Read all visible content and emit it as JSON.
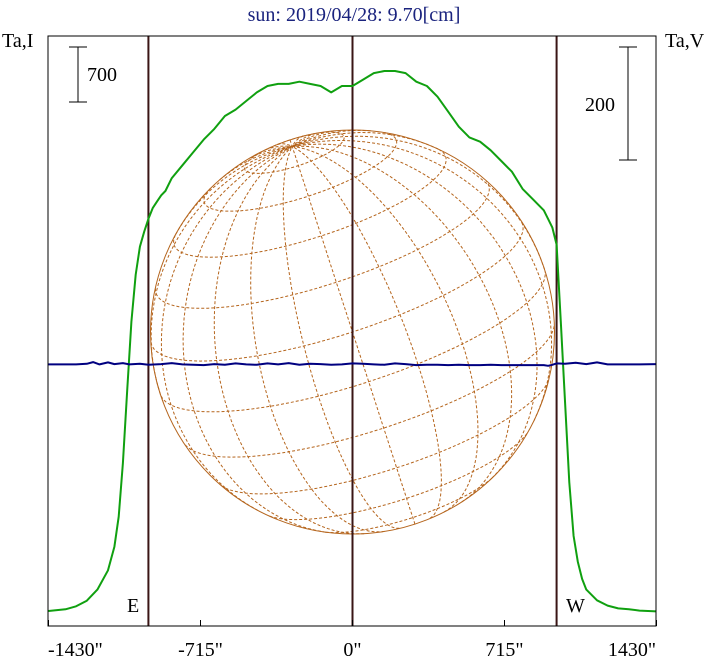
{
  "chart_data": {
    "type": "line",
    "title": "sun: 2019/04/28: 9.70[cm]",
    "left_axis_label": "Ta,I",
    "right_axis_label": "Ta,V",
    "left_scale_bar_label": "700",
    "right_scale_bar_label": "200",
    "limb_labels": {
      "east": "E",
      "west": "W"
    },
    "x_ticks": [
      -1430,
      -715,
      0,
      715,
      1430
    ],
    "x_tick_labels": [
      "-1430\"",
      "-715\"",
      "0\"",
      "715\"",
      "1430\""
    ],
    "xlim": [
      -1430,
      1430
    ],
    "vertical_markers": [
      -960,
      0,
      960
    ],
    "grid": false,
    "colors": {
      "title": "#1a237e",
      "stokes_i": "#10a010",
      "stokes_v": "#000080",
      "disk": "#b5651d",
      "markers": "#3a1515"
    },
    "series": [
      {
        "name": "Ta,I",
        "axis": "left",
        "ylim": [
          -300,
          2300
        ],
        "x": [
          -1430,
          -1350,
          -1300,
          -1250,
          -1200,
          -1150,
          -1120,
          -1100,
          -1080,
          -1060,
          -1040,
          -1020,
          -1000,
          -980,
          -960,
          -940,
          -920,
          -900,
          -880,
          -850,
          -800,
          -750,
          -700,
          -650,
          -600,
          -550,
          -500,
          -450,
          -400,
          -350,
          -300,
          -250,
          -200,
          -150,
          -100,
          -50,
          0,
          50,
          100,
          150,
          200,
          250,
          300,
          350,
          400,
          450,
          500,
          550,
          600,
          650,
          700,
          750,
          800,
          850,
          900,
          920,
          940,
          960,
          980,
          1000,
          1020,
          1040,
          1060,
          1080,
          1100,
          1150,
          1200,
          1250,
          1300,
          1350,
          1430
        ],
        "y": [
          -270,
          -262,
          -248,
          -222,
          -170,
          -80,
          30,
          170,
          420,
          760,
          1080,
          1300,
          1430,
          1500,
          1560,
          1610,
          1640,
          1670,
          1690,
          1750,
          1810,
          1870,
          1930,
          1980,
          2040,
          2070,
          2110,
          2150,
          2180,
          2190,
          2190,
          2200,
          2190,
          2180,
          2150,
          2180,
          2180,
          2210,
          2240,
          2250,
          2250,
          2240,
          2200,
          2180,
          2130,
          2060,
          1990,
          1940,
          1920,
          1880,
          1830,
          1780,
          1700,
          1650,
          1600,
          1560,
          1520,
          1440,
          1080,
          700,
          330,
          80,
          -40,
          -120,
          -170,
          -220,
          -245,
          -258,
          -262,
          -268,
          -272
        ]
      },
      {
        "name": "Ta,V",
        "axis": "right",
        "ylim": [
          -600,
          800
        ],
        "x": [
          -1430,
          -1350,
          -1300,
          -1250,
          -1220,
          -1190,
          -1150,
          -1120,
          -1080,
          -1050,
          -1000,
          -960,
          -900,
          -850,
          -800,
          -750,
          -700,
          -650,
          -600,
          -550,
          -500,
          -450,
          -400,
          -350,
          -300,
          -250,
          -200,
          -150,
          -100,
          -50,
          0,
          50,
          100,
          150,
          200,
          250,
          300,
          350,
          400,
          450,
          500,
          550,
          600,
          650,
          700,
          750,
          800,
          850,
          900,
          920,
          940,
          960,
          1000,
          1050,
          1100,
          1150,
          1200,
          1250,
          1300,
          1350,
          1430
        ],
        "y": [
          0,
          0,
          0,
          4,
          14,
          0,
          12,
          2,
          8,
          0,
          4,
          -2,
          2,
          8,
          0,
          -2,
          -4,
          2,
          -2,
          6,
          0,
          -2,
          6,
          0,
          8,
          -2,
          4,
          2,
          -2,
          0,
          6,
          4,
          0,
          -2,
          6,
          2,
          -4,
          -2,
          -2,
          -4,
          -2,
          -4,
          -4,
          -2,
          -4,
          -4,
          -4,
          -4,
          -4,
          -8,
          -2,
          6,
          4,
          10,
          2,
          12,
          0,
          0,
          0,
          0,
          2
        ]
      }
    ]
  }
}
